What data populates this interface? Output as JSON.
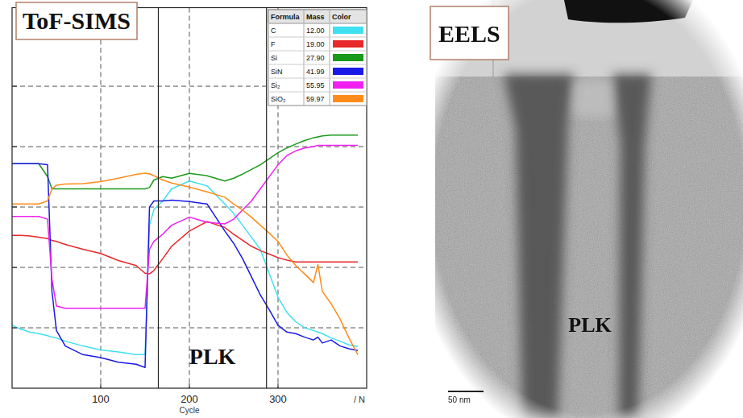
{
  "chart_data": {
    "type": "line",
    "title": "ToF-SIMS",
    "xlabel": "Cycle",
    "x_unit": "/ N",
    "log": "y",
    "grid": true,
    "tick_labels": "x",
    "legend": "upper right",
    "legend_header": [
      "Formula",
      "Mass",
      "Color"
    ],
    "xlim": [
      0,
      400
    ],
    "xticks": [
      100,
      200,
      300
    ],
    "ylim": [
      1,
      2000000
    ],
    "yticks": [
      10,
      100,
      1000,
      10000,
      100000
    ],
    "interfaces": [
      165,
      287
    ],
    "annotation": "PLK",
    "x": [
      0,
      10,
      20,
      30,
      40,
      45,
      50,
      60,
      80,
      100,
      120,
      140,
      150,
      155,
      160,
      170,
      180,
      200,
      220,
      240,
      250,
      260,
      270,
      280,
      290,
      300,
      310,
      320,
      330,
      340,
      345,
      350,
      360,
      370,
      380,
      390
    ],
    "series": [
      {
        "name": "C",
        "mass": "12.00",
        "color": "#3fe0f0",
        "values": [
          11,
          9.5,
          8.5,
          8,
          7.4,
          7,
          6.8,
          6,
          5,
          4.3,
          4,
          3.6,
          3.6,
          500,
          910,
          1260,
          2000,
          2700,
          2240,
          1120,
          780,
          500,
          316,
          200,
          80,
          32,
          18,
          12.6,
          10,
          9,
          8.5,
          8,
          6.8,
          6,
          5.2,
          4.9
        ]
      },
      {
        "name": "F",
        "mass": "19.00",
        "color": "#e8282a",
        "values": [
          340,
          340,
          330,
          316,
          300,
          280,
          270,
          240,
          200,
          170,
          130,
          107,
          80,
          78,
          89,
          140,
          224,
          400,
          575,
          457,
          355,
          282,
          224,
          190,
          166,
          145,
          132,
          123,
          123,
          123,
          123,
          123,
          123,
          123,
          123,
          123
        ]
      },
      {
        "name": "Si",
        "mass": "27.90",
        "color": "#1a9a1a",
        "values": [
          5200,
          5200,
          5200,
          5200,
          3200,
          2000,
          2000,
          2000,
          2000,
          2000,
          2000,
          2000,
          2000,
          2100,
          2800,
          3200,
          3000,
          3600,
          3300,
          2700,
          3000,
          3500,
          4200,
          5000,
          6300,
          7900,
          9500,
          11000,
          12600,
          14000,
          14500,
          15000,
          15500,
          15500,
          15500,
          15500
        ]
      },
      {
        "name": "SiN",
        "mass": "41.99",
        "color": "#1a1ae6",
        "values": [
          5200,
          5200,
          5200,
          5200,
          5000,
          40,
          9,
          5,
          3.6,
          3.2,
          2.7,
          2.5,
          2.2,
          1000,
          1260,
          1260,
          1300,
          1230,
          1120,
          400,
          250,
          140,
          70,
          35,
          20,
          11,
          8.5,
          8,
          7,
          6.3,
          7,
          5.6,
          6.3,
          5,
          4.5,
          4.2
        ]
      },
      {
        "name": "Si₂",
        "mass": "55.95",
        "color": "#f020f0",
        "values": [
          700,
          700,
          700,
          700,
          630,
          63,
          23,
          21,
          21,
          21,
          21,
          21,
          21,
          200,
          270,
          355,
          500,
          680,
          560,
          525,
          630,
          890,
          1260,
          2000,
          3160,
          5000,
          7100,
          8500,
          9500,
          10000,
          10500,
          10500,
          10500,
          10500,
          10500,
          10500
        ]
      },
      {
        "name": "SiO₂",
        "mass": "59.97",
        "color": "#ff8c1a",
        "values": [
          1120,
          1120,
          1120,
          1120,
          1260,
          2000,
          2300,
          2400,
          2450,
          2630,
          3000,
          3470,
          3630,
          3550,
          3300,
          2800,
          2500,
          2140,
          1780,
          1450,
          1120,
          890,
          680,
          500,
          370,
          270,
          160,
          107,
          78,
          56,
          112,
          40,
          25,
          14,
          6.8,
          3.6
        ]
      }
    ]
  },
  "image_panel": {
    "title": "EELS",
    "label": "PLK",
    "scale_bar": "50 nm"
  }
}
